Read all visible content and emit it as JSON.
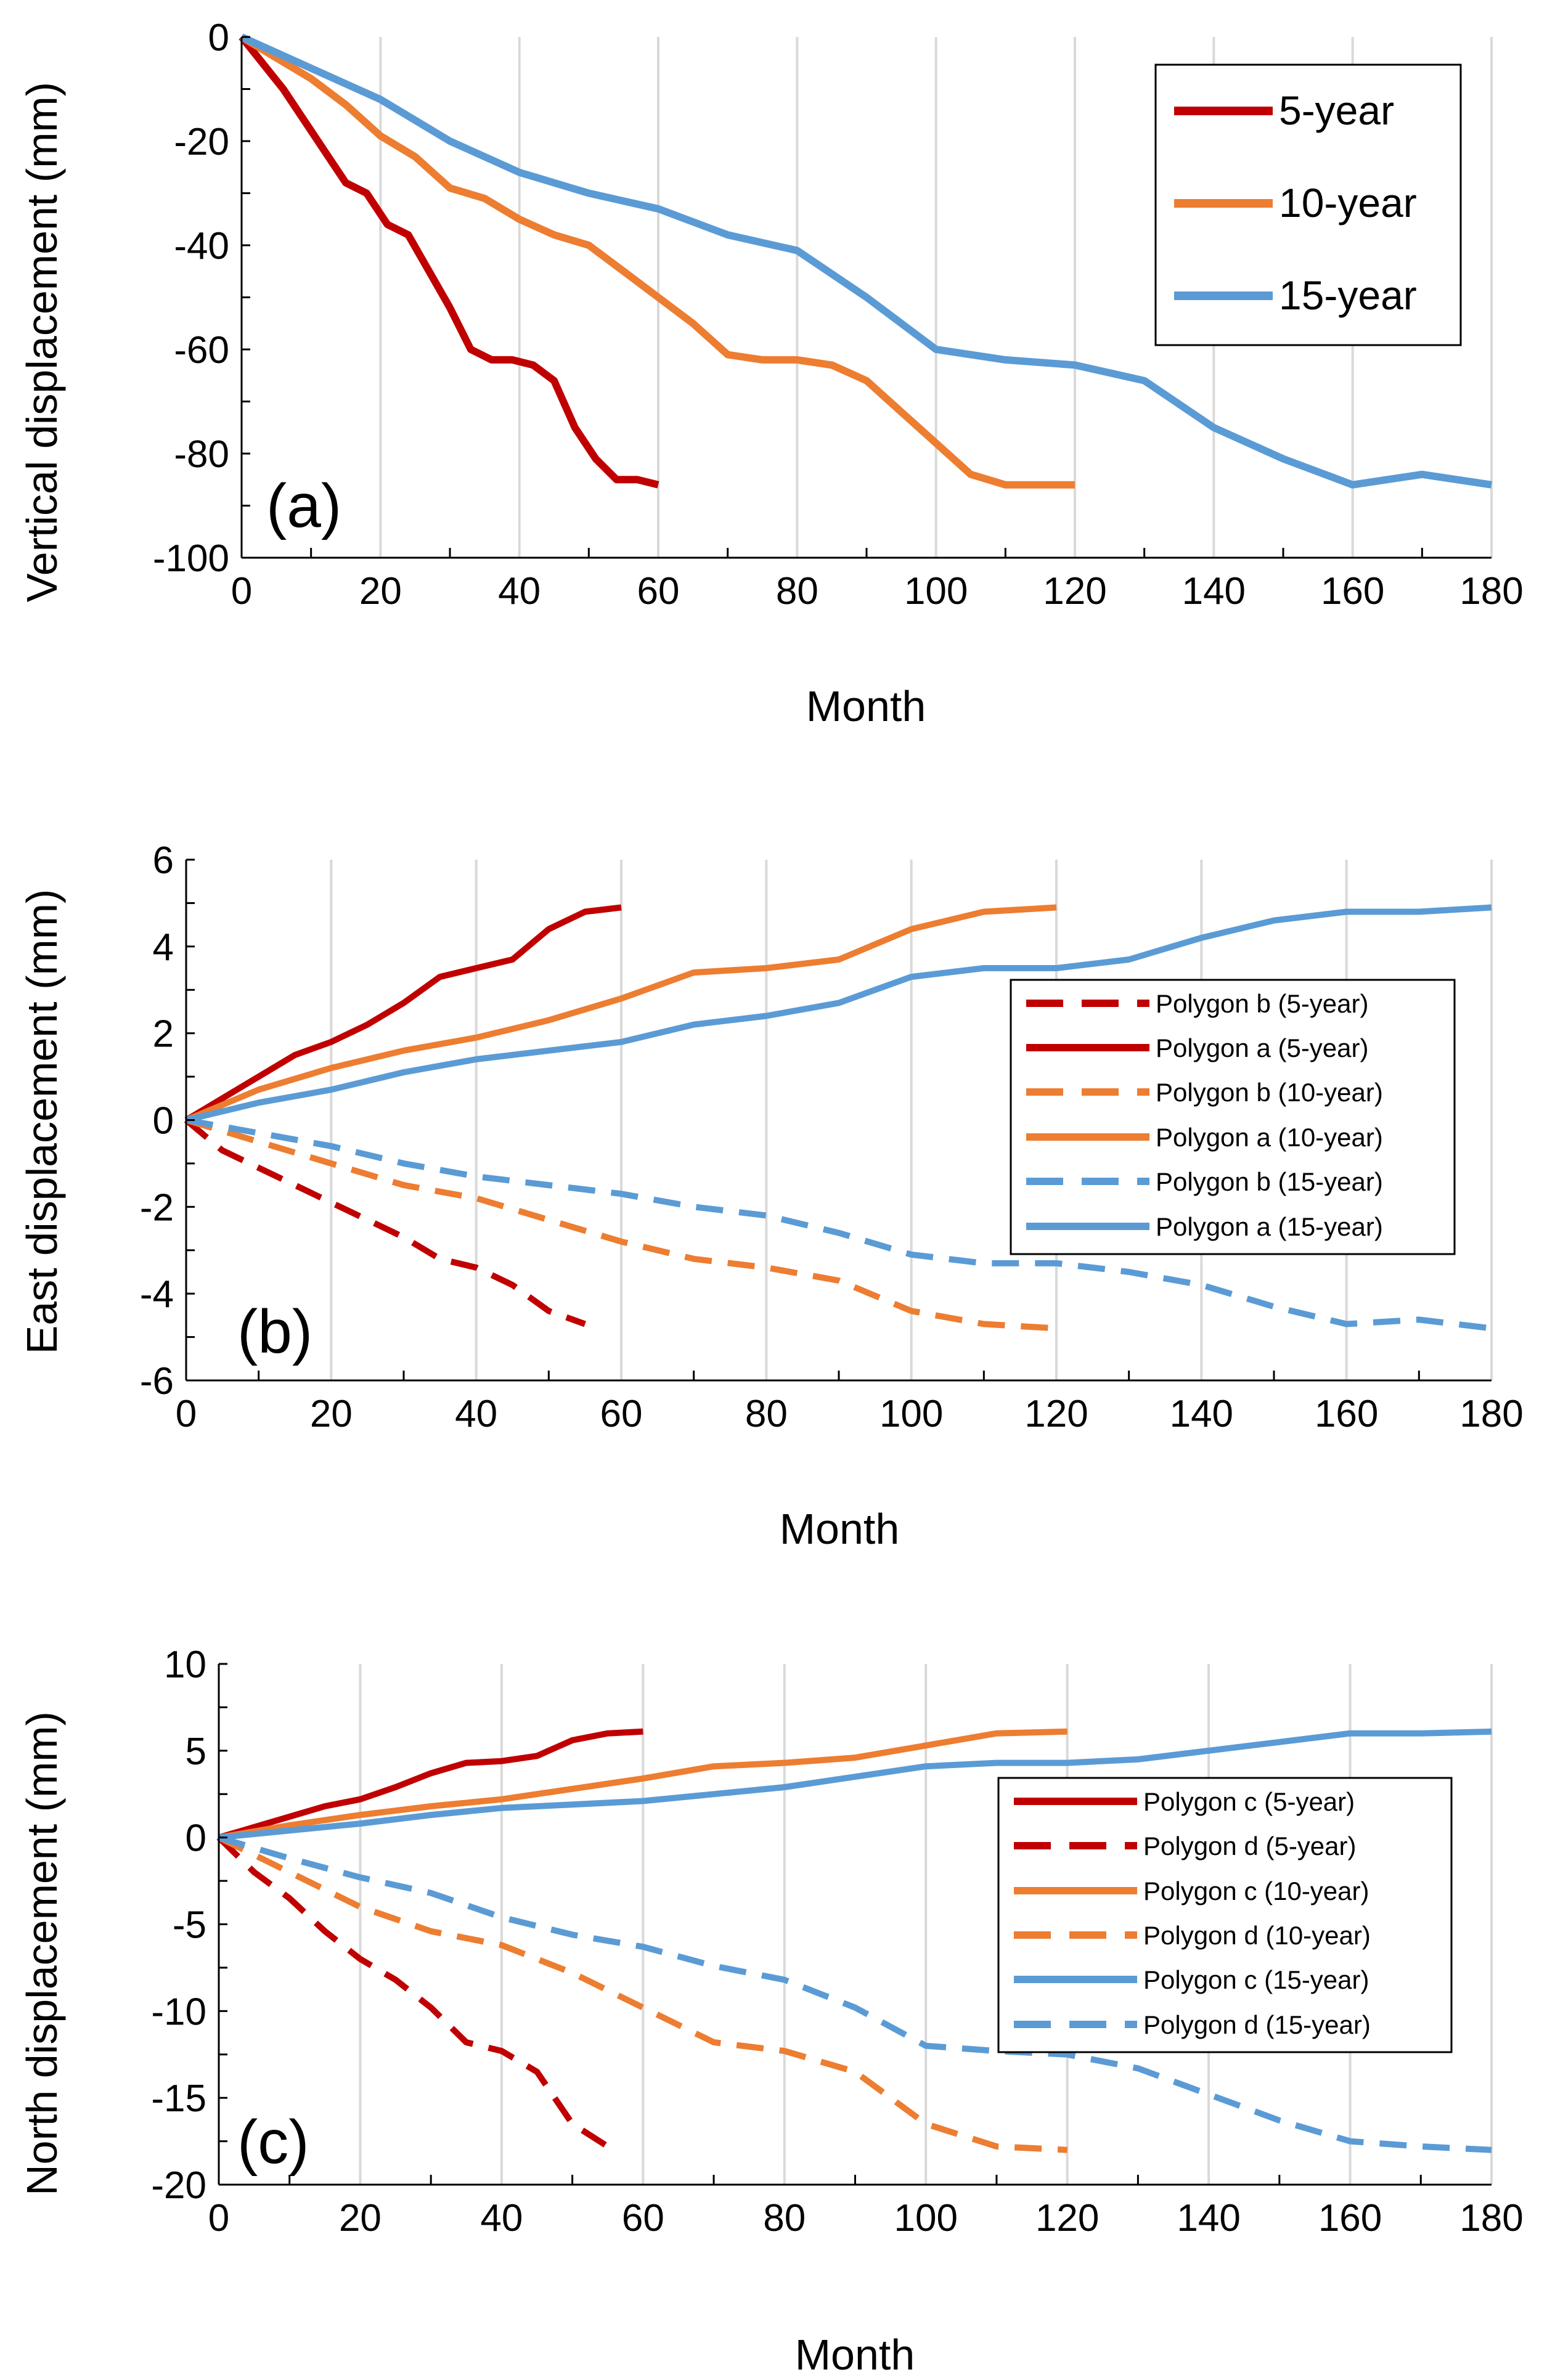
{
  "colors": {
    "five": "#C00000",
    "ten": "#ED7D31",
    "fifteen": "#5B9BD5",
    "grid": "#D9D9D9",
    "axis": "#000000"
  },
  "chart_data": [
    {
      "panel": "(a)",
      "type": "line",
      "xlabel": "Month",
      "ylabel": "Vertical displacement (mm)",
      "xlim": [
        0,
        180
      ],
      "ylim": [
        -100,
        0
      ],
      "xticks": [
        "0",
        "20",
        "40",
        "60",
        "80",
        "100",
        "120",
        "140",
        "160",
        "180"
      ],
      "yticks": [
        "0",
        "-20",
        "-40",
        "-60",
        "-80",
        "-100"
      ],
      "grid": "vertical",
      "legend": "top-right",
      "series": [
        {
          "name": "5-year",
          "color": "#C00000",
          "dash": "solid",
          "x": [
            0,
            3,
            6,
            9,
            12,
            15,
            18,
            21,
            24,
            27,
            30,
            33,
            36,
            39,
            42,
            45,
            48,
            51,
            54,
            57,
            60
          ],
          "y": [
            0,
            -5,
            -10,
            -16,
            -22,
            -28,
            -30,
            -36,
            -38,
            -45,
            -52,
            -60,
            -62,
            -62,
            -63,
            -66,
            -75,
            -81,
            -85,
            -85,
            -86
          ]
        },
        {
          "name": "10-year",
          "color": "#ED7D31",
          "dash": "solid",
          "x": [
            0,
            5,
            10,
            15,
            20,
            25,
            30,
            35,
            40,
            45,
            50,
            55,
            60,
            65,
            70,
            75,
            80,
            85,
            90,
            95,
            100,
            105,
            110,
            115,
            120
          ],
          "y": [
            0,
            -4,
            -8,
            -13,
            -19,
            -23,
            -29,
            -31,
            -35,
            -38,
            -40,
            -45,
            -50,
            -55,
            -61,
            -62,
            -62,
            -63,
            -66,
            -72,
            -78,
            -84,
            -86,
            -86,
            -86
          ]
        },
        {
          "name": "15-year",
          "color": "#5B9BD5",
          "dash": "solid",
          "x": [
            0,
            10,
            20,
            30,
            40,
            50,
            60,
            70,
            80,
            90,
            100,
            110,
            120,
            130,
            140,
            150,
            160,
            170,
            180
          ],
          "y": [
            0,
            -6,
            -12,
            -20,
            -26,
            -30,
            -33,
            -38,
            -41,
            -50,
            -60,
            -62,
            -63,
            -66,
            -75,
            -81,
            -86,
            -84,
            -86
          ]
        }
      ]
    },
    {
      "panel": "(b)",
      "type": "line",
      "xlabel": "Month",
      "ylabel": "East displacement (mm)",
      "xlim": [
        0,
        180
      ],
      "ylim": [
        -6,
        6
      ],
      "xticks": [
        "0",
        "20",
        "40",
        "60",
        "80",
        "100",
        "120",
        "140",
        "160",
        "180"
      ],
      "yticks": [
        "6",
        "4",
        "2",
        "0",
        "-2",
        "-4",
        "-6"
      ],
      "grid": "vertical",
      "legend": "right",
      "series": [
        {
          "name": "Polygon b (5-year)",
          "color": "#C00000",
          "dash": "dashed",
          "x": [
            0,
            5,
            10,
            15,
            20,
            25,
            30,
            35,
            40,
            45,
            50,
            55
          ],
          "y": [
            0,
            -0.7,
            -1.1,
            -1.5,
            -1.9,
            -2.3,
            -2.7,
            -3.2,
            -3.4,
            -3.8,
            -4.4,
            -4.7
          ]
        },
        {
          "name": "Polygon a (5-year)",
          "color": "#C00000",
          "dash": "solid",
          "x": [
            0,
            5,
            10,
            15,
            20,
            25,
            30,
            35,
            40,
            45,
            50,
            55,
            60
          ],
          "y": [
            0,
            0.5,
            1.0,
            1.5,
            1.8,
            2.2,
            2.7,
            3.3,
            3.5,
            3.7,
            4.4,
            4.8,
            4.9
          ]
        },
        {
          "name": "Polygon b (10-year)",
          "color": "#ED7D31",
          "dash": "dashed",
          "x": [
            0,
            10,
            20,
            30,
            40,
            50,
            60,
            70,
            80,
            90,
            100,
            110,
            120
          ],
          "y": [
            0,
            -0.5,
            -1.0,
            -1.5,
            -1.8,
            -2.3,
            -2.8,
            -3.2,
            -3.4,
            -3.7,
            -4.4,
            -4.7,
            -4.8
          ]
        },
        {
          "name": "Polygon a (10-year)",
          "color": "#ED7D31",
          "dash": "solid",
          "x": [
            0,
            10,
            20,
            30,
            40,
            50,
            60,
            70,
            80,
            90,
            100,
            110,
            120
          ],
          "y": [
            0,
            0.7,
            1.2,
            1.6,
            1.9,
            2.3,
            2.8,
            3.4,
            3.5,
            3.7,
            4.4,
            4.8,
            4.9
          ]
        },
        {
          "name": "Polygon b (15-year)",
          "color": "#5B9BD5",
          "dash": "dashed",
          "x": [
            0,
            10,
            20,
            30,
            40,
            50,
            60,
            70,
            80,
            90,
            100,
            110,
            120,
            130,
            140,
            150,
            160,
            170,
            180
          ],
          "y": [
            0,
            -0.3,
            -0.6,
            -1.0,
            -1.3,
            -1.5,
            -1.7,
            -2.0,
            -2.2,
            -2.6,
            -3.1,
            -3.3,
            -3.3,
            -3.5,
            -3.8,
            -4.3,
            -4.7,
            -4.6,
            -4.8
          ]
        },
        {
          "name": "Polygon a (15-year)",
          "color": "#5B9BD5",
          "dash": "solid",
          "x": [
            0,
            10,
            20,
            30,
            40,
            50,
            60,
            70,
            80,
            90,
            100,
            110,
            120,
            130,
            140,
            150,
            160,
            170,
            180
          ],
          "y": [
            0,
            0.4,
            0.7,
            1.1,
            1.4,
            1.6,
            1.8,
            2.2,
            2.4,
            2.7,
            3.3,
            3.5,
            3.5,
            3.7,
            4.2,
            4.6,
            4.8,
            4.8,
            4.9
          ]
        }
      ]
    },
    {
      "panel": "(c)",
      "type": "line",
      "xlabel": "Month",
      "ylabel": "North displacement (mm)",
      "xlim": [
        0,
        180
      ],
      "ylim": [
        -20,
        10
      ],
      "xticks": [
        "0",
        "20",
        "40",
        "60",
        "80",
        "100",
        "120",
        "140",
        "160",
        "180"
      ],
      "yticks": [
        "10",
        "5",
        "0",
        "-5",
        "-10",
        "-15",
        "-20"
      ],
      "grid": "vertical",
      "legend": "right",
      "series": [
        {
          "name": "Polygon c (5-year)",
          "color": "#C00000",
          "dash": "solid",
          "x": [
            0,
            5,
            10,
            15,
            20,
            25,
            30,
            35,
            40,
            45,
            50,
            55,
            60
          ],
          "y": [
            0,
            0.6,
            1.2,
            1.8,
            2.2,
            2.9,
            3.7,
            4.3,
            4.4,
            4.7,
            5.6,
            6.0,
            6.1
          ]
        },
        {
          "name": "Polygon d (5-year)",
          "color": "#C00000",
          "dash": "dashed",
          "x": [
            0,
            5,
            10,
            15,
            20,
            25,
            30,
            35,
            40,
            45,
            50,
            55
          ],
          "y": [
            0,
            -2.0,
            -3.5,
            -5.4,
            -7.0,
            -8.2,
            -9.8,
            -11.8,
            -12.3,
            -13.5,
            -16.5,
            -17.8
          ]
        },
        {
          "name": "Polygon c (10-year)",
          "color": "#ED7D31",
          "dash": "solid",
          "x": [
            0,
            10,
            20,
            30,
            40,
            50,
            60,
            70,
            80,
            90,
            100,
            110,
            120
          ],
          "y": [
            0,
            0.7,
            1.3,
            1.8,
            2.2,
            2.8,
            3.4,
            4.1,
            4.3,
            4.6,
            5.3,
            6.0,
            6.1
          ]
        },
        {
          "name": "Polygon d (10-year)",
          "color": "#ED7D31",
          "dash": "dashed",
          "x": [
            0,
            10,
            20,
            30,
            40,
            50,
            60,
            70,
            80,
            90,
            100,
            110,
            120
          ],
          "y": [
            0,
            -2.0,
            -4.0,
            -5.4,
            -6.2,
            -7.8,
            -9.8,
            -11.8,
            -12.3,
            -13.5,
            -16.5,
            -17.8,
            -18.0
          ]
        },
        {
          "name": "Polygon c (15-year)",
          "color": "#5B9BD5",
          "dash": "solid",
          "x": [
            0,
            10,
            20,
            30,
            40,
            50,
            60,
            70,
            80,
            90,
            100,
            110,
            120,
            130,
            140,
            150,
            160,
            170,
            180
          ],
          "y": [
            0,
            0.4,
            0.8,
            1.3,
            1.7,
            1.9,
            2.1,
            2.5,
            2.9,
            3.5,
            4.1,
            4.3,
            4.3,
            4.5,
            5.0,
            5.5,
            6.0,
            6.0,
            6.1
          ]
        },
        {
          "name": "Polygon d (15-year)",
          "color": "#5B9BD5",
          "dash": "dashed",
          "x": [
            0,
            10,
            20,
            30,
            40,
            50,
            60,
            70,
            80,
            90,
            100,
            110,
            120,
            130,
            140,
            150,
            160,
            170,
            180
          ],
          "y": [
            0,
            -1.2,
            -2.3,
            -3.2,
            -4.6,
            -5.6,
            -6.3,
            -7.4,
            -8.2,
            -9.8,
            -12.0,
            -12.3,
            -12.5,
            -13.3,
            -14.8,
            -16.3,
            -17.5,
            -17.8,
            -18.0
          ]
        }
      ]
    }
  ]
}
